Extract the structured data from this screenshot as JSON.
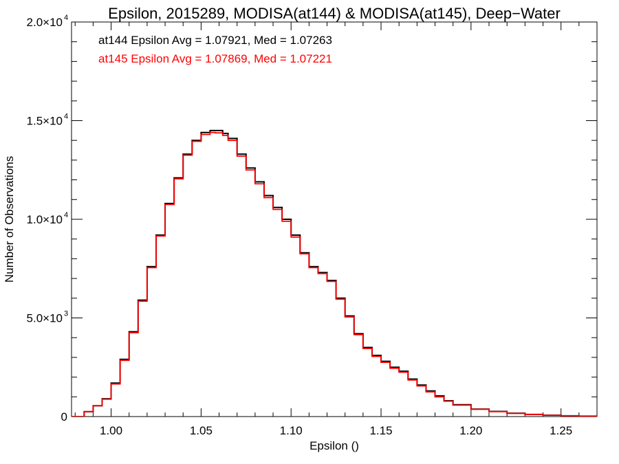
{
  "chart_data": {
    "type": "line",
    "step": true,
    "title": "Epsilon, 2015289, MODISA(at144) & MODISA(at145), Deep−Water",
    "xlabel": "Epsilon ()",
    "ylabel": "Number of Observations",
    "xlim": [
      0.978,
      1.27
    ],
    "ylim": [
      0,
      20000
    ],
    "grid": false,
    "x_ticks": [
      {
        "value": 1.0,
        "label": "1.00"
      },
      {
        "value": 1.05,
        "label": "1.05"
      },
      {
        "value": 1.1,
        "label": "1.10"
      },
      {
        "value": 1.15,
        "label": "1.15"
      },
      {
        "value": 1.2,
        "label": "1.20"
      },
      {
        "value": 1.25,
        "label": "1.25"
      }
    ],
    "y_ticks": [
      {
        "value": 0,
        "mantissa": "0",
        "exponent": ""
      },
      {
        "value": 5000,
        "mantissa": "5.0×10",
        "exponent": "3"
      },
      {
        "value": 10000,
        "mantissa": "1.0×10",
        "exponent": "4"
      },
      {
        "value": 15000,
        "mantissa": "1.5×10",
        "exponent": "4"
      },
      {
        "value": 20000,
        "mantissa": "2.0×10",
        "exponent": "4"
      }
    ],
    "annotations": [
      {
        "text": "at144 Epsilon Avg = 1.07921, Med = 1.07263",
        "color": "#000000"
      },
      {
        "text": "at145 Epsilon Avg = 1.07869, Med = 1.07221",
        "color": "#ff0000"
      }
    ],
    "x": [
      0.978,
      0.985,
      0.99,
      0.995,
      1.0,
      1.005,
      1.01,
      1.015,
      1.02,
      1.025,
      1.03,
      1.035,
      1.04,
      1.045,
      1.05,
      1.055,
      1.058,
      1.062,
      1.065,
      1.07,
      1.075,
      1.08,
      1.085,
      1.09,
      1.095,
      1.1,
      1.105,
      1.11,
      1.115,
      1.12,
      1.125,
      1.13,
      1.135,
      1.14,
      1.145,
      1.15,
      1.155,
      1.16,
      1.165,
      1.17,
      1.175,
      1.18,
      1.185,
      1.19,
      1.2,
      1.21,
      1.22,
      1.23,
      1.24,
      1.25,
      1.26,
      1.27
    ],
    "series": [
      {
        "name": "at144",
        "color": "#000000",
        "values": [
          0,
          250,
          550,
          900,
          1700,
          2900,
          4300,
          5900,
          7600,
          9200,
          10800,
          12100,
          13300,
          14000,
          14400,
          14500,
          14500,
          14350,
          14100,
          13300,
          12600,
          11900,
          11200,
          10600,
          10000,
          9200,
          8300,
          7600,
          7300,
          6900,
          6000,
          5100,
          4200,
          3500,
          3100,
          2800,
          2500,
          2300,
          1900,
          1600,
          1300,
          1050,
          800,
          600,
          380,
          260,
          170,
          110,
          70,
          40,
          20,
          10
        ]
      },
      {
        "name": "at145",
        "color": "#ff0000",
        "values": [
          0,
          250,
          550,
          880,
          1650,
          2850,
          4250,
          5850,
          7550,
          9150,
          10750,
          12050,
          13250,
          13950,
          14300,
          14400,
          14380,
          14250,
          14000,
          13200,
          12500,
          11800,
          11100,
          10500,
          9900,
          9100,
          8250,
          7550,
          7250,
          6850,
          5950,
          5050,
          4150,
          3450,
          3050,
          2750,
          2450,
          2250,
          1850,
          1550,
          1250,
          1000,
          780,
          580,
          370,
          250,
          160,
          105,
          65,
          38,
          18,
          8
        ]
      }
    ]
  }
}
